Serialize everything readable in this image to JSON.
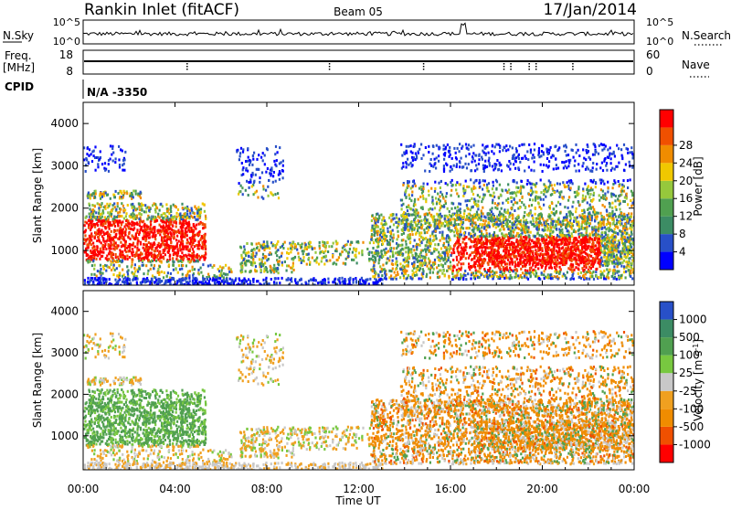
{
  "header": {
    "title": "Rankin Inlet (fitACF)",
    "beam": "Beam 05",
    "date": "17/Jan/2014"
  },
  "noise_panel": {
    "left_label": "N.Sky",
    "right_label": "N.Search",
    "left_ticks": [
      "10^5",
      "10^0"
    ],
    "right_ticks": [
      "10^5",
      "10^0"
    ]
  },
  "freq_panel": {
    "left_label_line1": "Freq.",
    "left_label_line2": "[MHz]",
    "right_label": "Nave",
    "left_ticks": [
      "18",
      "8"
    ],
    "right_ticks": [
      "60",
      "0"
    ]
  },
  "cpid_panel": {
    "label": "CPID",
    "value": "N/A -3350"
  },
  "colors": {
    "power": [
      "#0000ff",
      "#2850c8",
      "#3c8c64",
      "#50a050",
      "#96c83c",
      "#f0c800",
      "#f08c00",
      "#f05000",
      "#ff0000"
    ],
    "velocity": [
      "#2850c8",
      "#3c8c64",
      "#50a050",
      "#78c840",
      "#c8c8c8",
      "#f0a020",
      "#f08c00",
      "#f05000",
      "#ff0000"
    ]
  },
  "chart_data": [
    {
      "type": "heatmap",
      "name": "power",
      "ylabel": "Slant Range [km]",
      "ylim": [
        180,
        4500
      ],
      "yticks": [
        "1000",
        "2000",
        "3000",
        "4000"
      ],
      "xlim": [
        0,
        24
      ],
      "colorbar_label": "Power [dB]",
      "colorbar_ticks": [
        "4",
        "8",
        "12",
        "16",
        "20",
        "24",
        "28"
      ],
      "colorbar_range": [
        0,
        32
      ]
    },
    {
      "type": "heatmap",
      "name": "velocity",
      "ylabel": "Slant Range [km]",
      "ylim": [
        180,
        4500
      ],
      "yticks": [
        "1000",
        "2000",
        "3000",
        "4000"
      ],
      "xlim": [
        0,
        24
      ],
      "xlabel": "Time UT",
      "xticks": [
        "00:00",
        "04:00",
        "08:00",
        "12:00",
        "16:00",
        "20:00",
        "00:00"
      ],
      "colorbar_label": "Velocity [m s^-1]",
      "colorbar_ticks": [
        "1000",
        "500",
        "100",
        "25",
        "-25",
        "-100",
        "-500",
        "-1000"
      ]
    }
  ]
}
